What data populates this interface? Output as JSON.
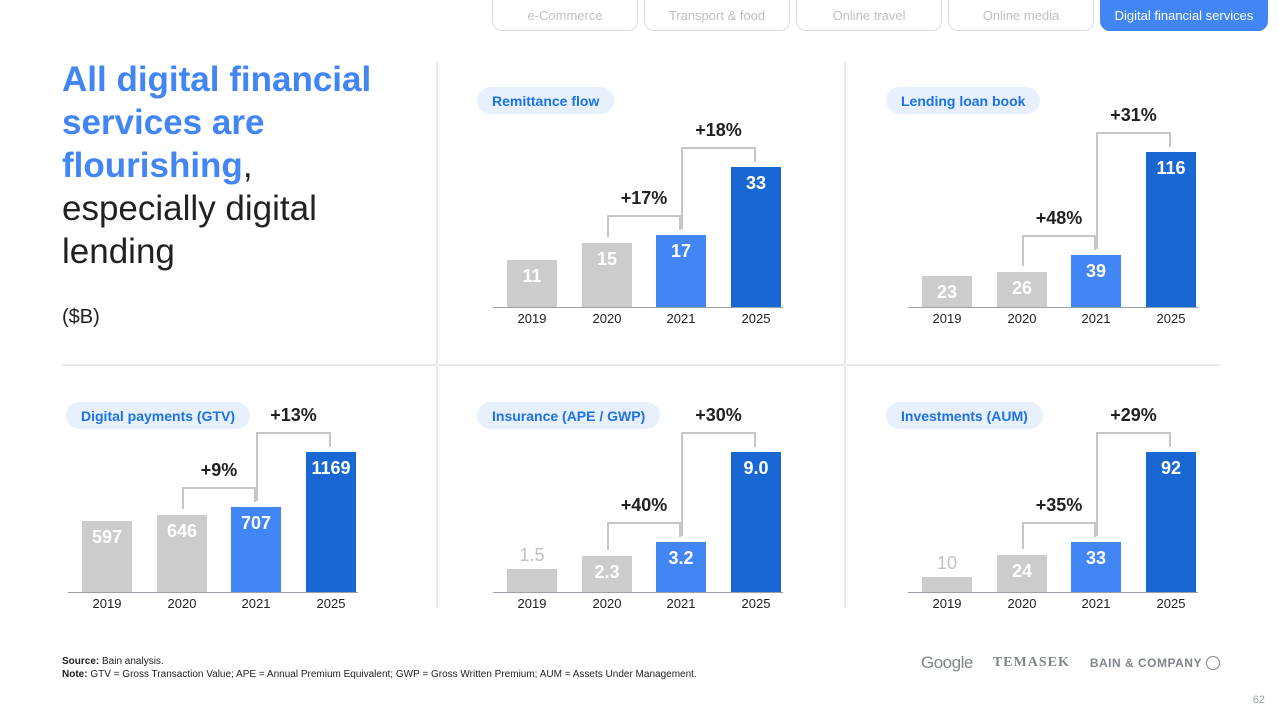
{
  "tabs": [
    "e-Commerce",
    "Transport & food",
    "Online travel",
    "Online media",
    "Digital financial services"
  ],
  "active_tab": 4,
  "title": {
    "hl": "All digital financial services are flourishing",
    "comma": ",",
    "rest": "especially digital lending",
    "unit": "($B)"
  },
  "colors": {
    "grey": "#cccccc",
    "blue": "#4285f4",
    "dark": "#1967d2"
  },
  "chart_data": [
    {
      "type": "bar",
      "title": "Remittance flow",
      "categories": [
        "2019",
        "2020",
        "2021",
        "2025"
      ],
      "values": [
        11,
        15,
        17,
        33
      ],
      "labels": [
        "11",
        "15",
        "17",
        "33"
      ],
      "growth": [
        "+17%",
        "+18%"
      ]
    },
    {
      "type": "bar",
      "title": "Lending loan book",
      "categories": [
        "2019",
        "2020",
        "2021",
        "2025"
      ],
      "values": [
        23,
        26,
        39,
        116
      ],
      "labels": [
        "23",
        "26",
        "39",
        "116"
      ],
      "growth": [
        "+48%",
        "+31%"
      ]
    },
    {
      "type": "bar",
      "title": "Digital payments (GTV)",
      "categories": [
        "2019",
        "2020",
        "2021",
        "2025"
      ],
      "values": [
        597,
        646,
        707,
        1169
      ],
      "labels": [
        "597",
        "646",
        "707",
        "1169"
      ],
      "growth": [
        "+9%",
        "+13%"
      ]
    },
    {
      "type": "bar",
      "title": "Insurance (APE / GWP)",
      "categories": [
        "2019",
        "2020",
        "2021",
        "2025"
      ],
      "values": [
        1.5,
        2.3,
        3.2,
        9.0
      ],
      "labels": [
        "1.5",
        "2.3",
        "3.2",
        "9.0"
      ],
      "growth": [
        "+40%",
        "+30%"
      ]
    },
    {
      "type": "bar",
      "title": "Investments (AUM)",
      "categories": [
        "2019",
        "2020",
        "2021",
        "2025"
      ],
      "values": [
        10,
        24,
        33,
        92
      ],
      "labels": [
        "10",
        "24",
        "33",
        "92"
      ],
      "growth": [
        "+35%",
        "+29%"
      ]
    }
  ],
  "footer": {
    "source_label": "Source:",
    "source": " Bain analysis.",
    "note_label": "Note:",
    "note": " GTV = Gross Transaction Value; APE = Annual Premium Equivalent; GWP = Gross Written Premium; AUM = Assets Under Management."
  },
  "logos": [
    "Google",
    "TEMASEK",
    "BAIN & COMPANY"
  ],
  "page_number": "62"
}
